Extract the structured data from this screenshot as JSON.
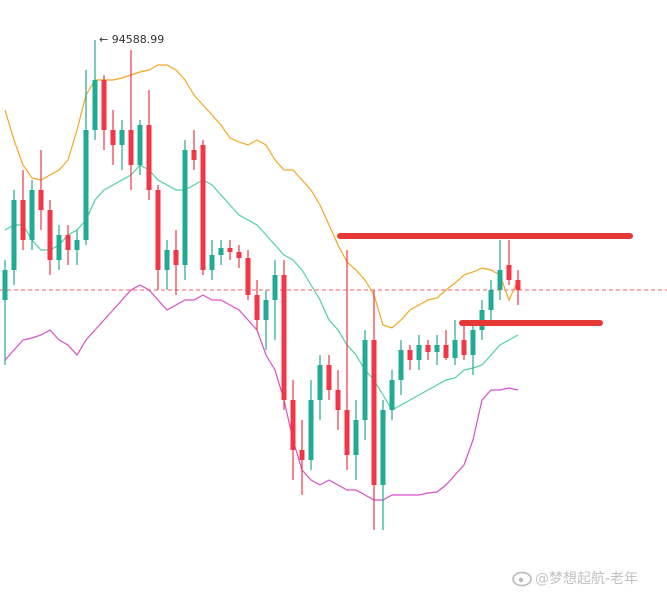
{
  "chart_data": {
    "type": "candlestick",
    "ylim": [
      89050,
      94990
    ],
    "up_color": "#22ab94",
    "down_color": "#f23645",
    "open": [
      91990,
      92290,
      92990,
      92590,
      93090,
      92890,
      92390,
      92640,
      92490,
      92590,
      93690,
      94190,
      93690,
      93540,
      93690,
      93340,
      93740,
      93090,
      92290,
      92490,
      92340,
      93490,
      93540,
      92290,
      92440,
      92510,
      92470,
      92410,
      92040,
      91790,
      91990,
      92240,
      90990,
      90490,
      90390,
      90990,
      91340,
      91090,
      90890,
      90440,
      90790,
      91590,
      90140,
      90890,
      91190,
      91490,
      91390,
      91540,
      91470,
      91540,
      91410,
      91590,
      91440,
      91690,
      91890,
      92090,
      92340,
      92190
    ],
    "high": [
      92390,
      93090,
      93290,
      93190,
      93490,
      92990,
      92740,
      92740,
      92690,
      94290,
      94588.99,
      94240,
      93890,
      93790,
      94490,
      93790,
      94090,
      93140,
      92590,
      92690,
      93590,
      93690,
      93590,
      92590,
      92590,
      92590,
      92540,
      92490,
      92190,
      92090,
      92390,
      92390,
      91190,
      90790,
      91190,
      91440,
      91440,
      91290,
      92490,
      90990,
      91690,
      92090,
      90990,
      91290,
      91590,
      91540,
      91640,
      91590,
      91640,
      91690,
      91790,
      91740,
      91790,
      91990,
      92190,
      92590,
      92590,
      92290
    ],
    "low": [
      91340,
      92140,
      92490,
      92490,
      92690,
      92240,
      92290,
      92340,
      92340,
      92540,
      93590,
      93490,
      93340,
      93290,
      93090,
      93240,
      92990,
      92090,
      92090,
      92040,
      92190,
      93290,
      92240,
      92190,
      92340,
      92390,
      92310,
      91990,
      91690,
      91490,
      91590,
      90890,
      90190,
      90040,
      90290,
      90790,
      90990,
      90690,
      90290,
      90190,
      90590,
      89690,
      89690,
      90790,
      91040,
      91290,
      91290,
      91390,
      91340,
      91390,
      91340,
      91390,
      91240,
      91590,
      91790,
      91990,
      92140,
      91940
    ],
    "close": [
      92290,
      92990,
      92590,
      93090,
      92890,
      92390,
      92640,
      92490,
      92590,
      93690,
      94190,
      93690,
      93540,
      93690,
      93340,
      93740,
      93090,
      92290,
      92490,
      92340,
      93490,
      93390,
      92290,
      92440,
      92510,
      92470,
      92410,
      92040,
      91790,
      91990,
      92240,
      90990,
      90490,
      90390,
      90990,
      91340,
      91090,
      90890,
      90440,
      90790,
      91590,
      90140,
      90890,
      91190,
      91490,
      91390,
      91540,
      91470,
      91540,
      91410,
      91590,
      91440,
      91690,
      91890,
      92090,
      92290,
      92190,
      92090
    ],
    "bands": [
      {
        "color": "#f5a623",
        "values": [
          93890,
          93590,
          93340,
          93210,
          93190,
          93240,
          93290,
          93390,
          93690,
          94040,
          94190,
          94190,
          94190,
          94210,
          94240,
          94270,
          94290,
          94340,
          94340,
          94290,
          94190,
          94040,
          93940,
          93840,
          93740,
          93610,
          93570,
          93540,
          93590,
          93540,
          93390,
          93290,
          93290,
          93190,
          93090,
          92940,
          92740,
          92540,
          92370,
          92290,
          92190,
          92040,
          91740,
          91710,
          91790,
          91890,
          91940,
          91990,
          92010,
          92090,
          92160,
          92240,
          92270,
          92310,
          92290,
          92240,
          91990,
          92190
        ]
      },
      {
        "color": "#4fd1a5",
        "values": [
          92690,
          92740,
          92740,
          92590,
          92490,
          92490,
          92540,
          92640,
          92690,
          92790,
          92990,
          93090,
          93140,
          93190,
          93240,
          93340,
          93290,
          93190,
          93140,
          93090,
          93090,
          93140,
          93190,
          93140,
          93040,
          92940,
          92840,
          92790,
          92740,
          92640,
          92540,
          92440,
          92390,
          92290,
          92140,
          91990,
          91790,
          91690,
          91540,
          91440,
          91290,
          91190,
          91040,
          90890,
          90940,
          90990,
          91040,
          91090,
          91140,
          91190,
          91210,
          91290,
          91310,
          91340,
          91440,
          91540,
          91590,
          91640
        ]
      },
      {
        "color": "#d94fc6",
        "values": [
          91390,
          91490,
          91590,
          91610,
          91640,
          91690,
          91590,
          91540,
          91440,
          91590,
          91690,
          91790,
          91890,
          91990,
          92090,
          92140,
          92090,
          91990,
          91890,
          91940,
          91990,
          91990,
          92040,
          91990,
          91990,
          91940,
          91890,
          91790,
          91690,
          91440,
          91290,
          90990,
          90590,
          90290,
          90190,
          90140,
          90190,
          90140,
          90090,
          90090,
          90040,
          89990,
          89990,
          90040,
          90040,
          90040,
          90040,
          90060,
          90070,
          90140,
          90240,
          90340,
          90590,
          90990,
          91090,
          91090,
          91110,
          91090
        ]
      }
    ],
    "price_line": {
      "value": 92090,
      "color": "#f23645"
    },
    "levels": [
      {
        "value": 92630,
        "color": "#e53935"
      },
      {
        "value": 91760,
        "color": "#e53935"
      }
    ],
    "max_marker": {
      "value": 94588.99,
      "label": "← 94588.99"
    },
    "watermark": "@梦想起航-老年"
  }
}
